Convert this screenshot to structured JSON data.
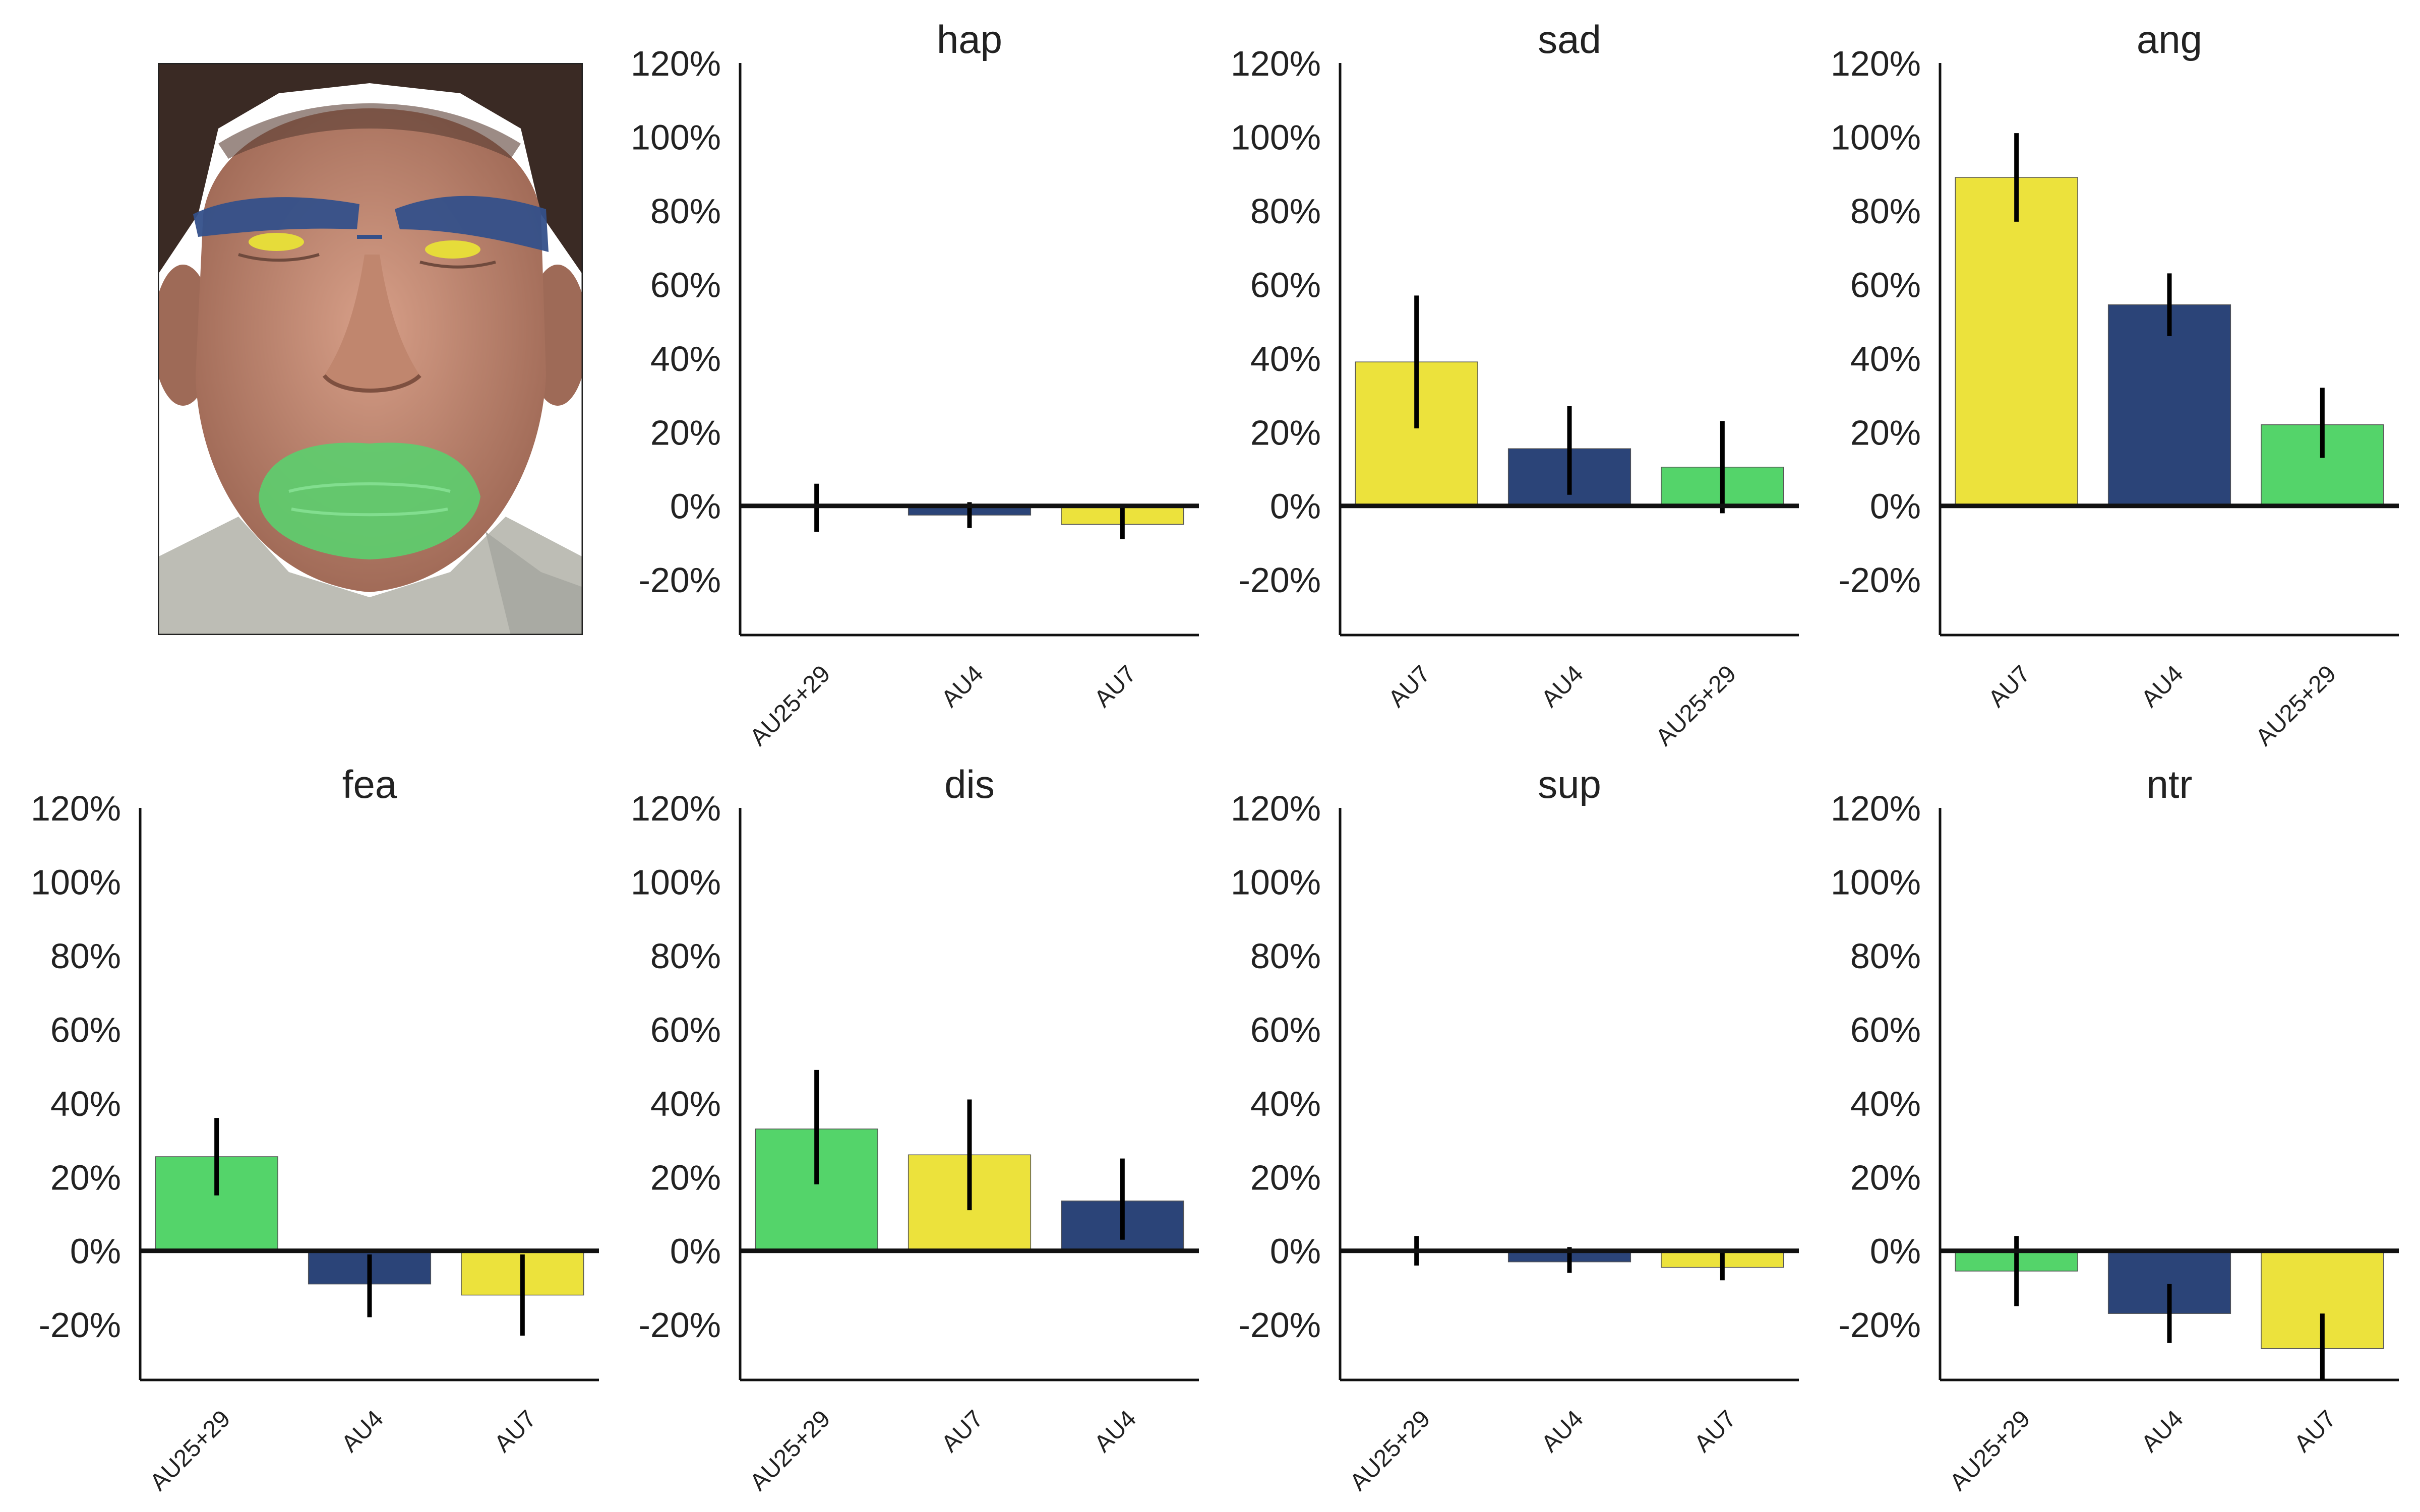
{
  "colors": {
    "AU25+29": "#54d46a",
    "AU4": "#2b4478",
    "AU7": "#ece23c",
    "axis": "#111111",
    "text": "#222222",
    "error_bar": "#000000"
  },
  "face_image": {
    "description_icon": "face-with-action-unit-overlay-icon",
    "regions": [
      {
        "au": "AU4",
        "color": "#2b4478"
      },
      {
        "au": "AU7",
        "color": "#ece23c"
      },
      {
        "au": "AU25+29",
        "color": "#54d46a"
      }
    ]
  },
  "chart_data": [
    {
      "type": "bar",
      "title": "hap",
      "categories": [
        "AU25+29",
        "AU4",
        "AU7"
      ],
      "values": [
        0,
        -2.5,
        -5
      ],
      "error_low": [
        -7,
        -6,
        -9
      ],
      "error_high": [
        6,
        1,
        0
      ],
      "yticks": [
        "120%",
        "100%",
        "80%",
        "60%",
        "40%",
        "20%",
        "0%",
        "-20%"
      ],
      "ylim": [
        -35,
        120
      ]
    },
    {
      "type": "bar",
      "title": "sad",
      "categories": [
        "AU7",
        "AU4",
        "AU25+29"
      ],
      "values": [
        39,
        15.5,
        10.5
      ],
      "error_low": [
        21,
        3,
        -2
      ],
      "error_high": [
        57,
        27,
        23
      ],
      "yticks": [
        "120%",
        "100%",
        "80%",
        "60%",
        "40%",
        "20%",
        "0%",
        "-20%"
      ],
      "ylim": [
        -35,
        120
      ]
    },
    {
      "type": "bar",
      "title": "ang",
      "categories": [
        "AU7",
        "AU4",
        "AU25+29"
      ],
      "values": [
        89,
        54.5,
        22
      ],
      "error_low": [
        77,
        46,
        13
      ],
      "error_high": [
        101,
        63,
        32
      ],
      "yticks": [
        "120%",
        "100%",
        "80%",
        "60%",
        "40%",
        "20%",
        "0%",
        "-20%"
      ],
      "ylim": [
        -35,
        120
      ]
    },
    {
      "type": "bar",
      "title": "fea",
      "categories": [
        "AU25+29",
        "AU4",
        "AU7"
      ],
      "values": [
        25.5,
        -9,
        -12
      ],
      "error_low": [
        15,
        -18,
        -23
      ],
      "error_high": [
        36,
        -1,
        -1
      ],
      "yticks": [
        "120%",
        "100%",
        "80%",
        "60%",
        "40%",
        "20%",
        "0%",
        "-20%"
      ],
      "ylim": [
        -35,
        120
      ]
    },
    {
      "type": "bar",
      "title": "dis",
      "categories": [
        "AU25+29",
        "AU7",
        "AU4"
      ],
      "values": [
        33,
        26,
        13.5
      ],
      "error_low": [
        18,
        11,
        3
      ],
      "error_high": [
        49,
        41,
        25
      ],
      "yticks": [
        "120%",
        "100%",
        "80%",
        "60%",
        "40%",
        "20%",
        "0%",
        "-20%"
      ],
      "ylim": [
        -35,
        120
      ]
    },
    {
      "type": "bar",
      "title": "sup",
      "categories": [
        "AU25+29",
        "AU4",
        "AU7"
      ],
      "values": [
        0,
        -3,
        -4.5
      ],
      "error_low": [
        -4,
        -6,
        -8
      ],
      "error_high": [
        4,
        1,
        0
      ],
      "yticks": [
        "120%",
        "100%",
        "80%",
        "60%",
        "40%",
        "20%",
        "0%",
        "-20%"
      ],
      "ylim": [
        -35,
        120
      ]
    },
    {
      "type": "bar",
      "title": "ntr",
      "categories": [
        "AU25+29",
        "AU4",
        "AU7"
      ],
      "values": [
        -5.5,
        -17,
        -26.5
      ],
      "error_low": [
        -15,
        -25,
        -35
      ],
      "error_high": [
        4,
        -9,
        -17
      ],
      "yticks": [
        "120%",
        "100%",
        "80%",
        "60%",
        "40%",
        "20%",
        "0%",
        "-20%"
      ],
      "ylim": [
        -35,
        120
      ]
    }
  ]
}
